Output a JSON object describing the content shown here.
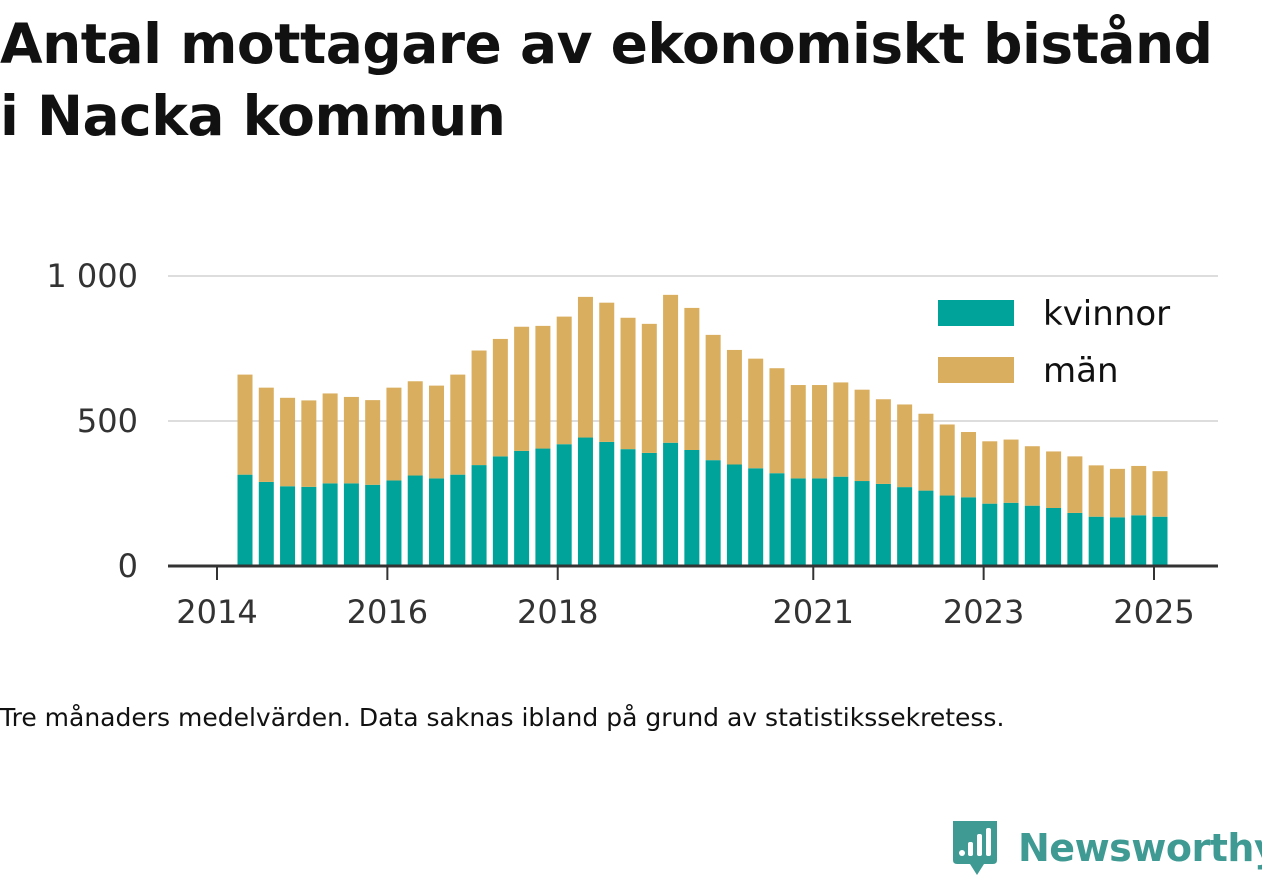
{
  "title_lines": [
    "Antal mottagare av ekonomiskt bistånd",
    "i Nacka kommun"
  ],
  "note": "Tre månaders medelvärden. Data saknas ibland på grund av statistikssekretess.",
  "brand": "Newsworthy",
  "colors": {
    "kvinnor": "#00a39a",
    "man": "#d9ae5e",
    "grid": "#dddddd",
    "axis": "#333333",
    "text": "#333333"
  },
  "chart_data": {
    "type": "bar",
    "stacked": true,
    "x_ticks": [
      "2014",
      "2016",
      "2018",
      "2021",
      "2023",
      "2025"
    ],
    "y_ticks": [
      "0",
      "500",
      "1 000"
    ],
    "ylim": [
      0,
      1000
    ],
    "grid": true,
    "legend_position": "top-right",
    "series": [
      {
        "name": "kvinnor",
        "values": [
          315,
          290,
          275,
          273,
          285,
          285,
          280,
          295,
          312,
          302,
          315,
          348,
          378,
          397,
          405,
          420,
          443,
          428,
          403,
          390,
          425,
          400,
          365,
          350,
          337,
          320,
          302,
          302,
          308,
          293,
          283,
          272,
          260,
          243,
          237,
          215,
          218,
          208,
          200,
          183,
          170,
          168,
          175,
          170
        ]
      },
      {
        "name": "män",
        "values": [
          345,
          325,
          305,
          298,
          310,
          298,
          292,
          320,
          325,
          320,
          345,
          395,
          405,
          428,
          423,
          440,
          485,
          480,
          453,
          445,
          510,
          490,
          432,
          395,
          378,
          362,
          322,
          322,
          325,
          315,
          292,
          285,
          265,
          245,
          225,
          215,
          218,
          205,
          195,
          195,
          177,
          167,
          170,
          157
        ]
      }
    ]
  }
}
